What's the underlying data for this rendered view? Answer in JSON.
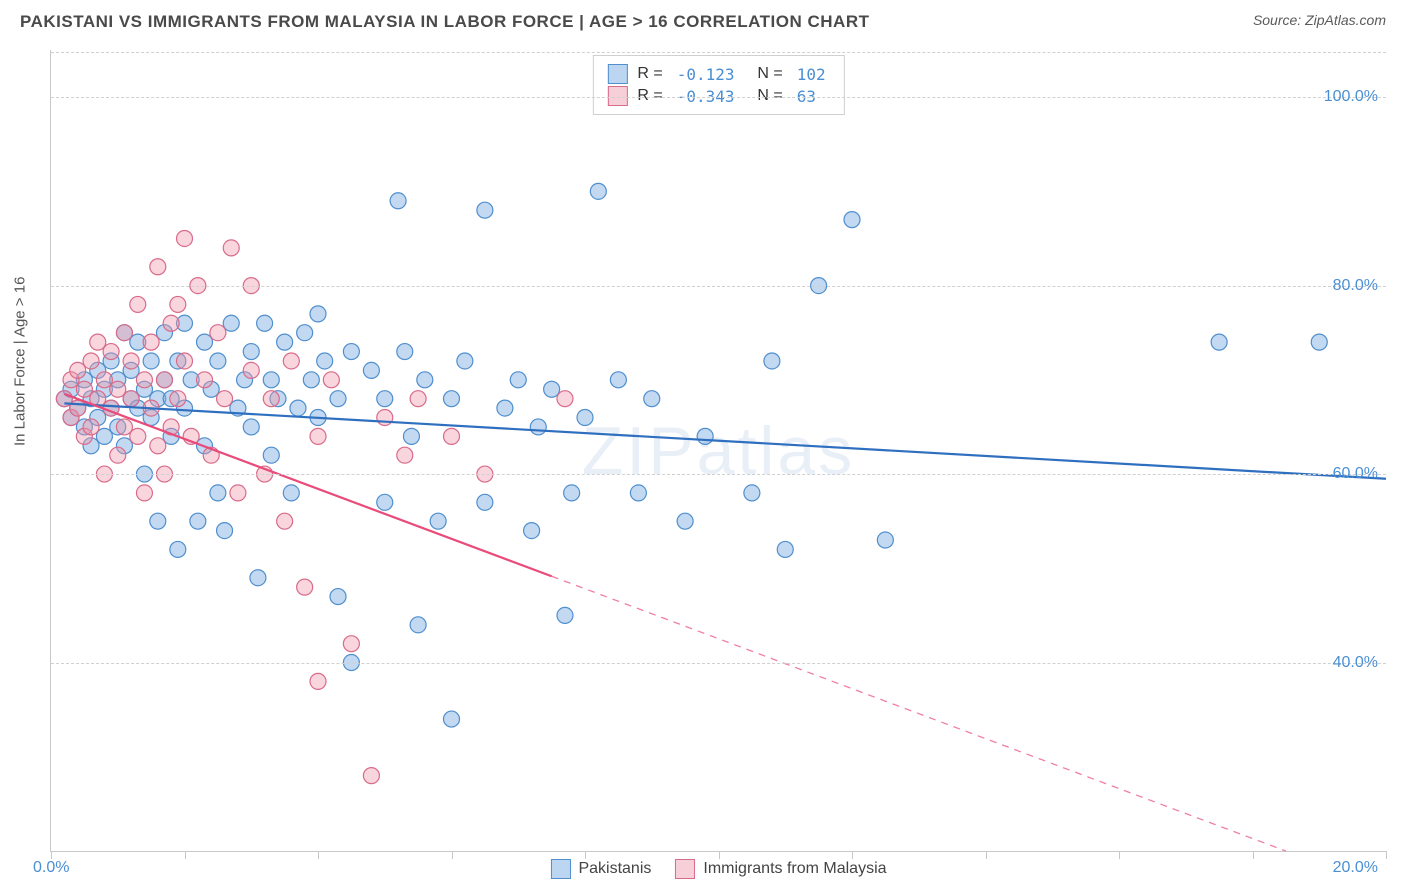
{
  "header": {
    "title": "PAKISTANI VS IMMIGRANTS FROM MALAYSIA IN LABOR FORCE | AGE > 16 CORRELATION CHART",
    "source_prefix": "Source: ",
    "source_name": "ZipAtlas.com"
  },
  "chart": {
    "type": "scatter",
    "yaxis_title": "In Labor Force | Age > 16",
    "watermark": "ZIPatlas",
    "background_color": "#ffffff",
    "grid_color": "#d0d0d0",
    "axis_color": "#c8c8c8",
    "tick_label_color": "#4a8fd4",
    "xlim": [
      0,
      20
    ],
    "ylim": [
      20,
      105
    ],
    "yticks": [
      40,
      60,
      80,
      100
    ],
    "ytick_labels": [
      "40.0%",
      "60.0%",
      "80.0%",
      "100.0%"
    ],
    "xticks": [
      0,
      2,
      4,
      6,
      8,
      10,
      12,
      14,
      16,
      18,
      20
    ],
    "xorigin_label": "0.0%",
    "xend_label": "20.0%",
    "marker_radius": 8,
    "marker_stroke_width": 1.2,
    "line_width": 2.2,
    "series": [
      {
        "key": "pakistanis",
        "label": "Pakistanis",
        "fill_color": "rgba(120,170,225,0.45)",
        "stroke_color": "#4f8fce",
        "line_color": "#2f6fc0",
        "swatch_fill": "#bcd6f2",
        "swatch_border": "#4f8fce",
        "R": "-0.123",
        "N": "102",
        "trend": {
          "x1": 0.2,
          "y1": 67.5,
          "x2": 20,
          "y2": 59.5,
          "solid_until_x": 20
        },
        "points": [
          [
            0.2,
            68
          ],
          [
            0.3,
            69
          ],
          [
            0.3,
            66
          ],
          [
            0.4,
            67
          ],
          [
            0.5,
            70
          ],
          [
            0.5,
            65
          ],
          [
            0.6,
            68
          ],
          [
            0.6,
            63
          ],
          [
            0.7,
            71
          ],
          [
            0.7,
            66
          ],
          [
            0.8,
            69
          ],
          [
            0.8,
            64
          ],
          [
            0.9,
            67
          ],
          [
            0.9,
            72
          ],
          [
            1.0,
            70
          ],
          [
            1.0,
            65
          ],
          [
            1.1,
            75
          ],
          [
            1.1,
            63
          ],
          [
            1.2,
            68
          ],
          [
            1.2,
            71
          ],
          [
            1.3,
            67
          ],
          [
            1.3,
            74
          ],
          [
            1.4,
            69
          ],
          [
            1.4,
            60
          ],
          [
            1.5,
            72
          ],
          [
            1.5,
            66
          ],
          [
            1.6,
            68
          ],
          [
            1.6,
            55
          ],
          [
            1.7,
            75
          ],
          [
            1.7,
            70
          ],
          [
            1.8,
            64
          ],
          [
            1.8,
            68
          ],
          [
            1.9,
            72
          ],
          [
            1.9,
            52
          ],
          [
            2.0,
            76
          ],
          [
            2.0,
            67
          ],
          [
            2.1,
            70
          ],
          [
            2.2,
            55
          ],
          [
            2.3,
            74
          ],
          [
            2.3,
            63
          ],
          [
            2.4,
            69
          ],
          [
            2.5,
            58
          ],
          [
            2.5,
            72
          ],
          [
            2.6,
            54
          ],
          [
            2.7,
            76
          ],
          [
            2.8,
            67
          ],
          [
            2.9,
            70
          ],
          [
            3.0,
            73
          ],
          [
            3.0,
            65
          ],
          [
            3.1,
            49
          ],
          [
            3.2,
            76
          ],
          [
            3.3,
            70
          ],
          [
            3.3,
            62
          ],
          [
            3.4,
            68
          ],
          [
            3.5,
            74
          ],
          [
            3.6,
            58
          ],
          [
            3.7,
            67
          ],
          [
            3.8,
            75
          ],
          [
            3.9,
            70
          ],
          [
            4.0,
            66
          ],
          [
            4.0,
            77
          ],
          [
            4.1,
            72
          ],
          [
            4.3,
            68
          ],
          [
            4.3,
            47
          ],
          [
            4.5,
            73
          ],
          [
            4.5,
            40
          ],
          [
            4.8,
            71
          ],
          [
            5.0,
            68
          ],
          [
            5.0,
            57
          ],
          [
            5.2,
            89
          ],
          [
            5.3,
            73
          ],
          [
            5.4,
            64
          ],
          [
            5.5,
            44
          ],
          [
            5.6,
            70
          ],
          [
            5.8,
            55
          ],
          [
            6.0,
            68
          ],
          [
            6.0,
            34
          ],
          [
            6.2,
            72
          ],
          [
            6.5,
            88
          ],
          [
            6.5,
            57
          ],
          [
            6.8,
            67
          ],
          [
            7.0,
            70
          ],
          [
            7.2,
            54
          ],
          [
            7.3,
            65
          ],
          [
            7.5,
            69
          ],
          [
            7.7,
            45
          ],
          [
            7.8,
            58
          ],
          [
            8.0,
            66
          ],
          [
            8.2,
            90
          ],
          [
            8.5,
            70
          ],
          [
            8.8,
            58
          ],
          [
            9.0,
            68
          ],
          [
            9.5,
            55
          ],
          [
            9.8,
            64
          ],
          [
            10.5,
            58
          ],
          [
            10.8,
            72
          ],
          [
            11.0,
            52
          ],
          [
            11.5,
            80
          ],
          [
            12.0,
            87
          ],
          [
            12.5,
            53
          ],
          [
            17.5,
            74
          ],
          [
            19.0,
            74
          ]
        ]
      },
      {
        "key": "malaysia",
        "label": "Immigrants from Malaysia",
        "fill_color": "rgba(240,150,170,0.40)",
        "stroke_color": "#d96b8a",
        "line_color": "#e94b7a",
        "swatch_fill": "#f7cfd9",
        "swatch_border": "#d96b8a",
        "R": "-0.343",
        "N": "63",
        "trend": {
          "x1": 0.2,
          "y1": 68.5,
          "x2": 18.5,
          "y2": 20,
          "solid_until_x": 7.5
        },
        "points": [
          [
            0.2,
            68
          ],
          [
            0.3,
            70
          ],
          [
            0.3,
            66
          ],
          [
            0.4,
            67
          ],
          [
            0.4,
            71
          ],
          [
            0.5,
            64
          ],
          [
            0.5,
            69
          ],
          [
            0.6,
            72
          ],
          [
            0.6,
            65
          ],
          [
            0.7,
            68
          ],
          [
            0.7,
            74
          ],
          [
            0.8,
            60
          ],
          [
            0.8,
            70
          ],
          [
            0.9,
            67
          ],
          [
            0.9,
            73
          ],
          [
            1.0,
            62
          ],
          [
            1.0,
            69
          ],
          [
            1.1,
            75
          ],
          [
            1.1,
            65
          ],
          [
            1.2,
            68
          ],
          [
            1.2,
            72
          ],
          [
            1.3,
            64
          ],
          [
            1.3,
            78
          ],
          [
            1.4,
            70
          ],
          [
            1.4,
            58
          ],
          [
            1.5,
            67
          ],
          [
            1.5,
            74
          ],
          [
            1.6,
            63
          ],
          [
            1.6,
            82
          ],
          [
            1.7,
            70
          ],
          [
            1.7,
            60
          ],
          [
            1.8,
            76
          ],
          [
            1.8,
            65
          ],
          [
            1.9,
            68
          ],
          [
            1.9,
            78
          ],
          [
            2.0,
            72
          ],
          [
            2.0,
            85
          ],
          [
            2.1,
            64
          ],
          [
            2.2,
            80
          ],
          [
            2.3,
            70
          ],
          [
            2.4,
            62
          ],
          [
            2.5,
            75
          ],
          [
            2.6,
            68
          ],
          [
            2.7,
            84
          ],
          [
            2.8,
            58
          ],
          [
            3.0,
            71
          ],
          [
            3.0,
            80
          ],
          [
            3.2,
            60
          ],
          [
            3.3,
            68
          ],
          [
            3.5,
            55
          ],
          [
            3.6,
            72
          ],
          [
            3.8,
            48
          ],
          [
            4.0,
            64
          ],
          [
            4.0,
            38
          ],
          [
            4.2,
            70
          ],
          [
            4.5,
            42
          ],
          [
            4.8,
            28
          ],
          [
            5.0,
            66
          ],
          [
            5.3,
            62
          ],
          [
            5.5,
            68
          ],
          [
            6.0,
            64
          ],
          [
            6.5,
            60
          ],
          [
            7.7,
            68
          ]
        ]
      }
    ]
  }
}
